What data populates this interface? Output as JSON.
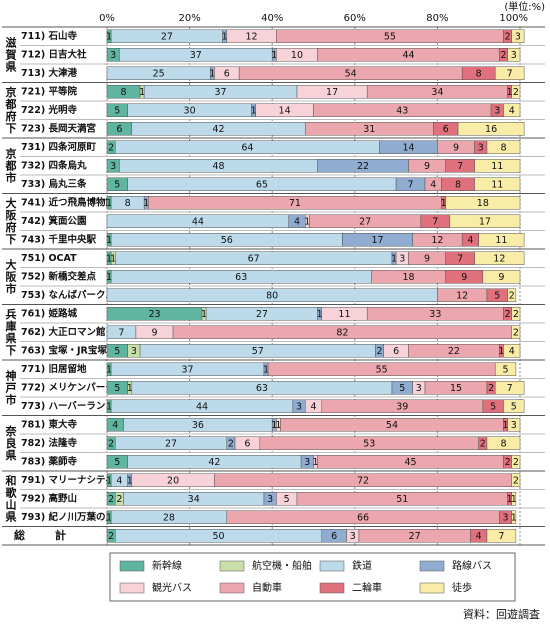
{
  "chart_data": {
    "type": "stacked-bar-horizontal",
    "unit": "(単位:%)",
    "source": "資料：回遊調査",
    "xlim": [
      0,
      100
    ],
    "xticks": [
      {
        "value": 0,
        "label": "0%"
      },
      {
        "value": 20,
        "label": "20%"
      },
      {
        "value": 40,
        "label": "40%"
      },
      {
        "value": 60,
        "label": "60%"
      },
      {
        "value": 80,
        "label": "80%"
      },
      {
        "value": 100,
        "label": "100%"
      }
    ],
    "grid": true,
    "groups": [
      {
        "name": "滋賀県",
        "categories": [
          "711) 石山寺",
          "712) 日吉大社",
          "713) 大津港"
        ]
      },
      {
        "name": "京都府下",
        "categories": [
          "721) 平等院",
          "722) 光明寺",
          "723) 長岡天満宮"
        ]
      },
      {
        "name": "京都市",
        "categories": [
          "731) 四条河原町",
          "732) 四条烏丸",
          "733) 烏丸三条"
        ]
      },
      {
        "name": "大阪府下",
        "categories": [
          "741) 近つ飛鳥博物館",
          "742) 箕面公園",
          "743) 千里中央駅"
        ]
      },
      {
        "name": "大阪市",
        "categories": [
          "751) OCAT",
          "752) 新橋交差点",
          "753) なんばパークス"
        ]
      },
      {
        "name": "兵庫県下",
        "categories": [
          "761) 姫路城",
          "762) 大正ロマン館",
          "763) 宝塚・JR宝塚駅周辺"
        ]
      },
      {
        "name": "神戸市",
        "categories": [
          "771) 旧居留地",
          "772) メリケンパーク",
          "773) ハーバーランド"
        ]
      },
      {
        "name": "奈良県",
        "categories": [
          "781) 東大寺",
          "782) 法隆寺",
          "783) 薬師寺"
        ]
      },
      {
        "name": "和歌山県",
        "categories": [
          "791) マリーナシティ",
          "792) 高野山",
          "793) 紀ノ川万葉の里"
        ]
      },
      {
        "name": "総計",
        "categories": [
          null
        ]
      }
    ],
    "series": [
      {
        "name": "新幹線",
        "color": "#5fb5a0",
        "values": [
          1,
          3,
          0,
          8,
          5,
          6,
          2,
          3,
          5,
          1,
          0,
          1,
          1,
          1,
          0,
          23,
          0,
          5,
          1,
          5,
          1,
          4,
          2,
          5,
          1,
          2,
          1,
          2
        ]
      },
      {
        "name": "航空機・船舶",
        "color": "#c9dfa9",
        "values": [
          0,
          0,
          0,
          1,
          0,
          0,
          0,
          0,
          0,
          0,
          0,
          0,
          1,
          0,
          0,
          1,
          0,
          3,
          0,
          1,
          0,
          0,
          0,
          0,
          0,
          2,
          0,
          0
        ]
      },
      {
        "name": "鉄道",
        "color": "#bddaeb",
        "values": [
          27,
          37,
          25,
          37,
          30,
          42,
          64,
          48,
          65,
          8,
          44,
          56,
          67,
          63,
          80,
          27,
          7,
          57,
          37,
          63,
          44,
          36,
          27,
          42,
          4,
          34,
          28,
          50
        ]
      },
      {
        "name": "路線バス",
        "color": "#90acd0",
        "values": [
          1,
          1,
          1,
          0,
          1,
          0,
          14,
          22,
          7,
          1,
          4,
          17,
          1,
          0,
          0,
          1,
          0,
          2,
          1,
          5,
          3,
          1,
          2,
          3,
          1,
          3,
          0,
          6
        ]
      },
      {
        "name": "観光バス",
        "color": "#f7d2d8",
        "values": [
          12,
          10,
          6,
          17,
          14,
          0,
          0,
          0,
          0,
          0,
          1,
          0,
          3,
          0,
          0,
          11,
          9,
          6,
          0,
          3,
          4,
          1,
          6,
          1,
          20,
          5,
          0,
          3
        ]
      },
      {
        "name": "自動車",
        "color": "#eca6ad",
        "values": [
          55,
          44,
          54,
          34,
          43,
          31,
          9,
          9,
          4,
          71,
          27,
          12,
          9,
          18,
          12,
          33,
          82,
          22,
          55,
          15,
          39,
          54,
          53,
          45,
          72,
          51,
          66,
          27
        ]
      },
      {
        "name": "二輪車",
        "color": "#e0707c",
        "values": [
          2,
          2,
          8,
          1,
          3,
          6,
          3,
          7,
          8,
          1,
          7,
          4,
          7,
          9,
          5,
          2,
          0,
          1,
          0,
          2,
          5,
          1,
          2,
          2,
          0,
          1,
          3,
          4
        ]
      },
      {
        "name": "徒歩",
        "color": "#f8eca7",
        "values": [
          3,
          3,
          7,
          2,
          4,
          16,
          8,
          11,
          11,
          18,
          17,
          11,
          12,
          9,
          2,
          2,
          2,
          4,
          5,
          7,
          5,
          3,
          8,
          2,
          2,
          1,
          1,
          7
        ]
      }
    ]
  }
}
